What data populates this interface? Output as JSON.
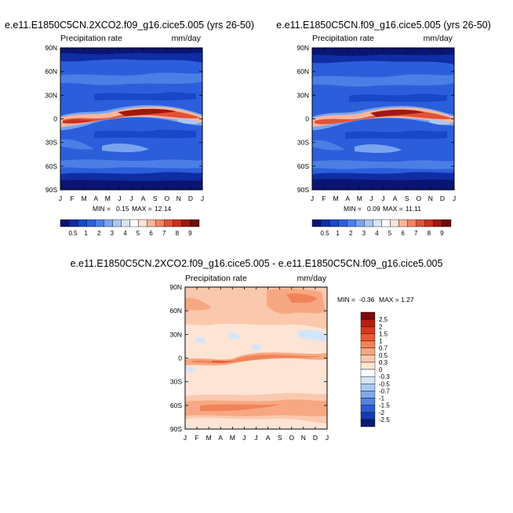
{
  "chart_data": [
    {
      "type": "heatmap",
      "title": "e.e11.E1850C5CN.2XCO2.f09_g16.cice5.005 (yrs 26-50)",
      "left_label": "Precipitation rate",
      "right_label": "mm/day",
      "x_ticks": [
        "J",
        "F",
        "M",
        "A",
        "M",
        "J",
        "J",
        "A",
        "S",
        "O",
        "N",
        "D",
        "J"
      ],
      "y_ticks": [
        "90N",
        "60N",
        "30N",
        "0",
        "30S",
        "60S",
        "90S"
      ],
      "min_label": "MIN =",
      "min_value": "0.15",
      "max_label": "MAX =",
      "max_value": "12.14",
      "colorbar_labels": [
        "0.5",
        "1",
        "2",
        "3",
        "4",
        "5",
        "6",
        "7",
        "8",
        "9"
      ],
      "colors": [
        "#0a1572",
        "#0f2da4",
        "#1a46c8",
        "#2c5edc",
        "#4b7fe6",
        "#7aa4ef",
        "#a9c7f6",
        "#d8e6fb",
        "#ffffff",
        "#fde3d6",
        "#f8b59c",
        "#f08366",
        "#e35235",
        "#c8301d",
        "#9e1810",
        "#6e0c08"
      ]
    },
    {
      "type": "heatmap",
      "title": "e.e11.E1850C5CN.f09_g16.cice5.005 (yrs 26-50)",
      "left_label": "Precipitation rate",
      "right_label": "mm/day",
      "x_ticks": [
        "J",
        "F",
        "M",
        "A",
        "M",
        "J",
        "J",
        "A",
        "S",
        "O",
        "N",
        "D",
        "J"
      ],
      "y_ticks": [
        "90N",
        "60N",
        "30N",
        "0",
        "30S",
        "60S",
        "90S"
      ],
      "min_label": "MIN =",
      "min_value": "0.09",
      "max_label": "MAX =",
      "max_value": "11.11",
      "colorbar_labels": [
        "0.5",
        "1",
        "2",
        "3",
        "4",
        "5",
        "6",
        "7",
        "8",
        "9"
      ],
      "colors": [
        "#0a1572",
        "#0f2da4",
        "#1a46c8",
        "#2c5edc",
        "#4b7fe6",
        "#7aa4ef",
        "#a9c7f6",
        "#d8e6fb",
        "#ffffff",
        "#fde3d6",
        "#f8b59c",
        "#f08366",
        "#e35235",
        "#c8301d",
        "#9e1810",
        "#6e0c08"
      ]
    },
    {
      "type": "heatmap",
      "title": "e.e11.E1850C5CN.2XCO2.f09_g16.cice5.005 - e.e11.E1850C5CN.f09_g16.cice5.005",
      "left_label": "Precipitation rate",
      "right_label": "mm/day",
      "x_ticks": [
        "J",
        "F",
        "M",
        "A",
        "M",
        "J",
        "J",
        "A",
        "S",
        "O",
        "N",
        "D",
        "J"
      ],
      "y_ticks": [
        "90N",
        "60N",
        "30N",
        "0",
        "30S",
        "60S",
        "90S"
      ],
      "min_label": "MIN =",
      "min_value": "-0.36",
      "max_label": "MAX =",
      "max_value": "1.27",
      "colorbar_labels": [
        "2.5",
        "2",
        "1.5",
        "1",
        "0.7",
        "0.5",
        "0.3",
        "0",
        "-0.3",
        "-0.5",
        "-0.7",
        "-1",
        "-1.5",
        "-2",
        "-2.5"
      ],
      "colors": [
        "#7a0c0c",
        "#b41e10",
        "#d8381c",
        "#ea5a33",
        "#f28358",
        "#f7a882",
        "#fac8ad",
        "#fde4d4",
        "#ffffff",
        "#d5e5f9",
        "#a8c8f2",
        "#7ea8ea",
        "#5183df",
        "#2c5bd0",
        "#163ab0",
        "#0a1a72"
      ]
    }
  ]
}
